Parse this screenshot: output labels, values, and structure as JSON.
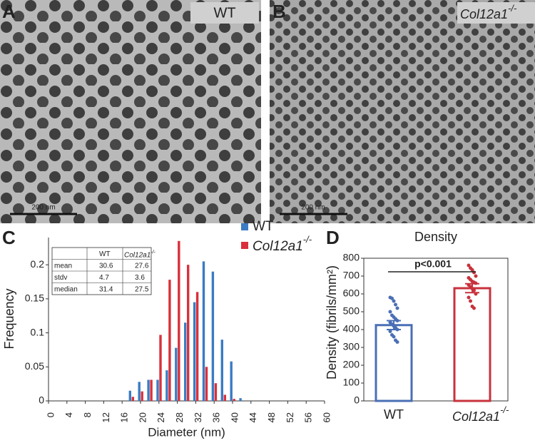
{
  "panels": [
    {
      "letter": "A",
      "label": "WT",
      "scale_bar": "200 nm"
    },
    {
      "letter": "B",
      "label": "Col12a1",
      "label_superscript": "-/-",
      "scale_bar": "200 nm"
    }
  ],
  "chart_data": [
    {
      "type": "bar",
      "letter": "C",
      "xlabel": "Diameter (nm)",
      "ylabel": "Frequency",
      "x": [
        18,
        20,
        22,
        24,
        26,
        28,
        30,
        32,
        34,
        36,
        38,
        40,
        42
      ],
      "series": [
        {
          "name": "WT",
          "color": "#3b7bc4",
          "values": [
            0.015,
            0.028,
            0.031,
            0.031,
            0.045,
            0.078,
            0.115,
            0.145,
            0.205,
            0.19,
            0.09,
            0.058,
            0.004
          ]
        },
        {
          "name": "Col12a1",
          "superscript": "-/-",
          "color": "#d9303b",
          "values": [
            0.006,
            0.014,
            0.031,
            0.097,
            0.178,
            0.235,
            0.2,
            0.16,
            0.05,
            0.026,
            0.009,
            0.003,
            0
          ]
        }
      ],
      "xlim": [
        0,
        60
      ],
      "xticks": [
        0,
        4,
        8,
        12,
        16,
        20,
        24,
        28,
        32,
        36,
        40,
        44,
        48,
        52,
        56,
        60
      ],
      "ylim": [
        0,
        0.24
      ],
      "yticks": [
        0,
        0.05,
        0.1,
        0.15,
        0.2
      ],
      "table": {
        "columns": [
          "WT",
          "Col12a1"
        ],
        "column_superscript": "-/-",
        "rows": [
          {
            "label": "mean",
            "values": [
              30.6,
              27.6
            ]
          },
          {
            "label": "stdv",
            "values": [
              4.7,
              3.6
            ]
          },
          {
            "label": "median",
            "values": [
              31.4,
              27.5
            ]
          }
        ]
      }
    },
    {
      "type": "bar",
      "letter": "D",
      "title": "Density",
      "ylabel": "Density (fibrils/mm²)",
      "categories": [
        "WT",
        "Col12a1"
      ],
      "category_superscript": "-/-",
      "values": [
        425,
        632
      ],
      "errors": [
        25,
        25
      ],
      "colors": [
        "#4a6fb5",
        "#c8323c"
      ],
      "points": [
        [
          580,
          575,
          560,
          540,
          520,
          500,
          480,
          470,
          460,
          450,
          440,
          430,
          420,
          410,
          400,
          390,
          370,
          360,
          340,
          330
        ],
        [
          760,
          745,
          735,
          720,
          700,
          690,
          680,
          670,
          665,
          660,
          650,
          640,
          630,
          620,
          600,
          580,
          560,
          530,
          520
        ]
      ],
      "annotation": "p<0.001",
      "ylim": [
        0,
        800
      ],
      "yticks": [
        0,
        100,
        200,
        300,
        400,
        500,
        600,
        700,
        800
      ]
    }
  ]
}
